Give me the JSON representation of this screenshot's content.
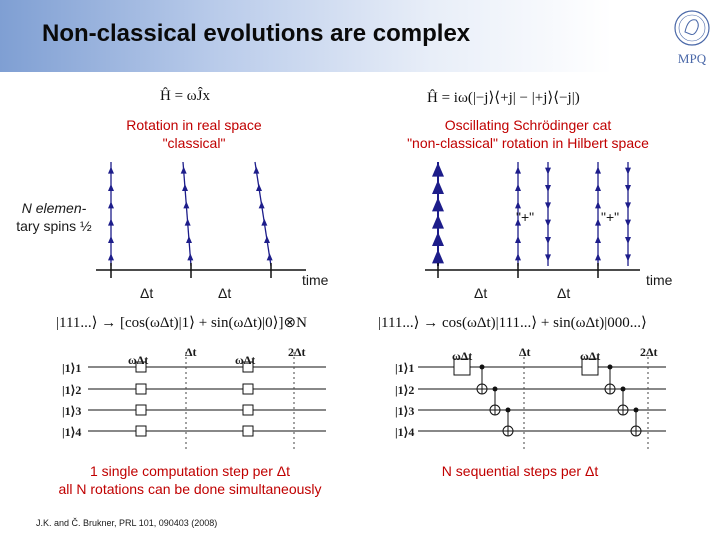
{
  "title": "Non-classical evolutions are complex",
  "logo": {
    "text": "MPQ"
  },
  "left": {
    "hamiltonian": "Ĥ = ωĴx",
    "heading_line1": "Rotation in real space",
    "heading_line2": "\"classical\"",
    "dt1": "Δt",
    "dt2": "Δt",
    "time": "time",
    "state_formula": "|111...⟩ → [cos(ωΔt)|1⟩ + sin(ωΔt)|0⟩]⊗N",
    "circuit": {
      "wires": [
        "|1⟩1",
        "|1⟩2",
        "|1⟩3",
        "|1⟩4"
      ],
      "gate_labels": [
        "ωΔt",
        "ωΔt"
      ],
      "time_marks": [
        "Δt",
        "2Δt"
      ]
    },
    "caption_line1": "1 single computation step per Δt",
    "caption_line2": "all N rotations can be done simultaneously"
  },
  "right": {
    "hamiltonian": "Ĥ = iω(|−j⟩⟨+j| − |+j⟩⟨−j|)",
    "heading_line1": "Oscillating Schrödinger cat",
    "heading_line2": "\"non-classical\" rotation in Hilbert space",
    "plus_label_1": "\"+\"",
    "plus_label_2": "\"+\"",
    "dt1": "Δt",
    "dt2": "Δt",
    "time": "time",
    "state_formula": "|111...⟩ → cos(ωΔt)|111...⟩ + sin(ωΔt)|000...⟩",
    "circuit": {
      "wires": [
        "|1⟩1",
        "|1⟩2",
        "|1⟩3",
        "|1⟩4"
      ],
      "gate_labels": [
        "ωΔt",
        "ωΔt"
      ],
      "time_marks": [
        "Δt",
        "2Δt"
      ]
    },
    "caption": "N sequential steps per Δt"
  },
  "spins_label_line1": "N elemen-",
  "spins_label_line2": "tary spins ½",
  "reference": "J.K. and Č. Brukner, PRL 101, 090403 (2008)",
  "colors": {
    "caption_red": "#c00000",
    "spin_blue": "#1d1d8a",
    "header_blue": "#7f9fd3"
  }
}
